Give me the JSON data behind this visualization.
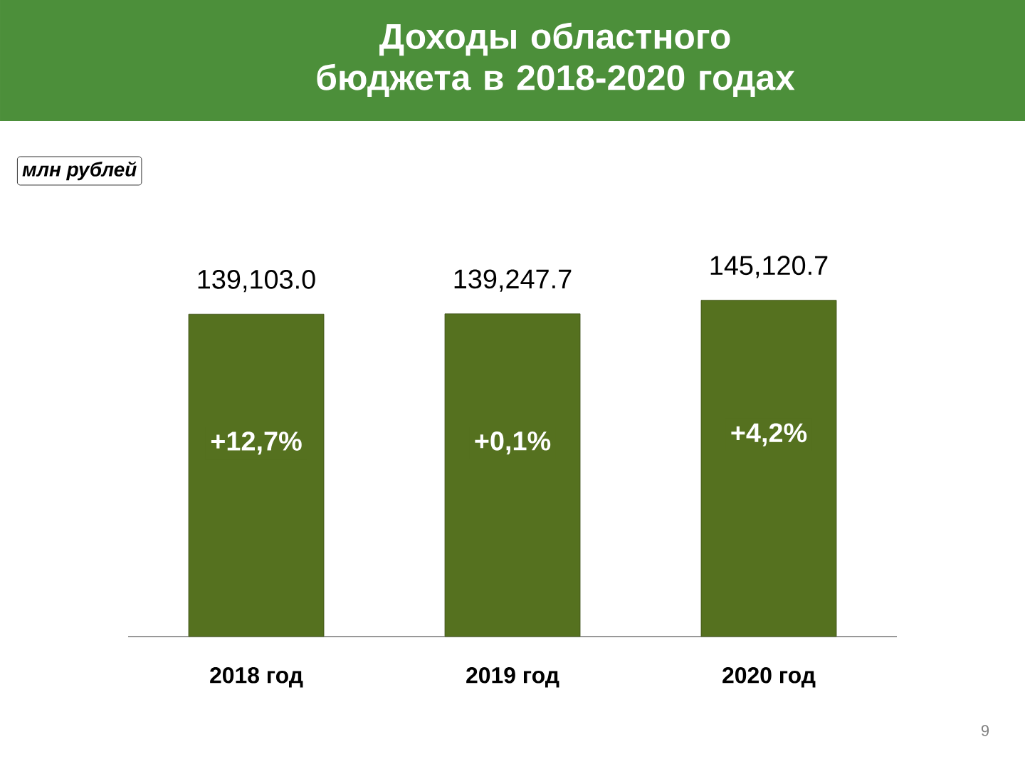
{
  "chart_data": {
    "type": "bar",
    "title": "Доходы областного бюджета в 2018-2020 годах",
    "categories": [
      "2018 год",
      "2019 год",
      "2020 год"
    ],
    "values": [
      139103.0,
      139247.7,
      145120.7
    ],
    "value_labels": [
      "139,103.0",
      "139,247.7",
      "145,120.7"
    ],
    "color": "#55711f",
    "annotations": [
      "млн рублей",
      "+12,7%",
      "+0,1%",
      "+4,2%",
      "9"
    ]
  }
}
